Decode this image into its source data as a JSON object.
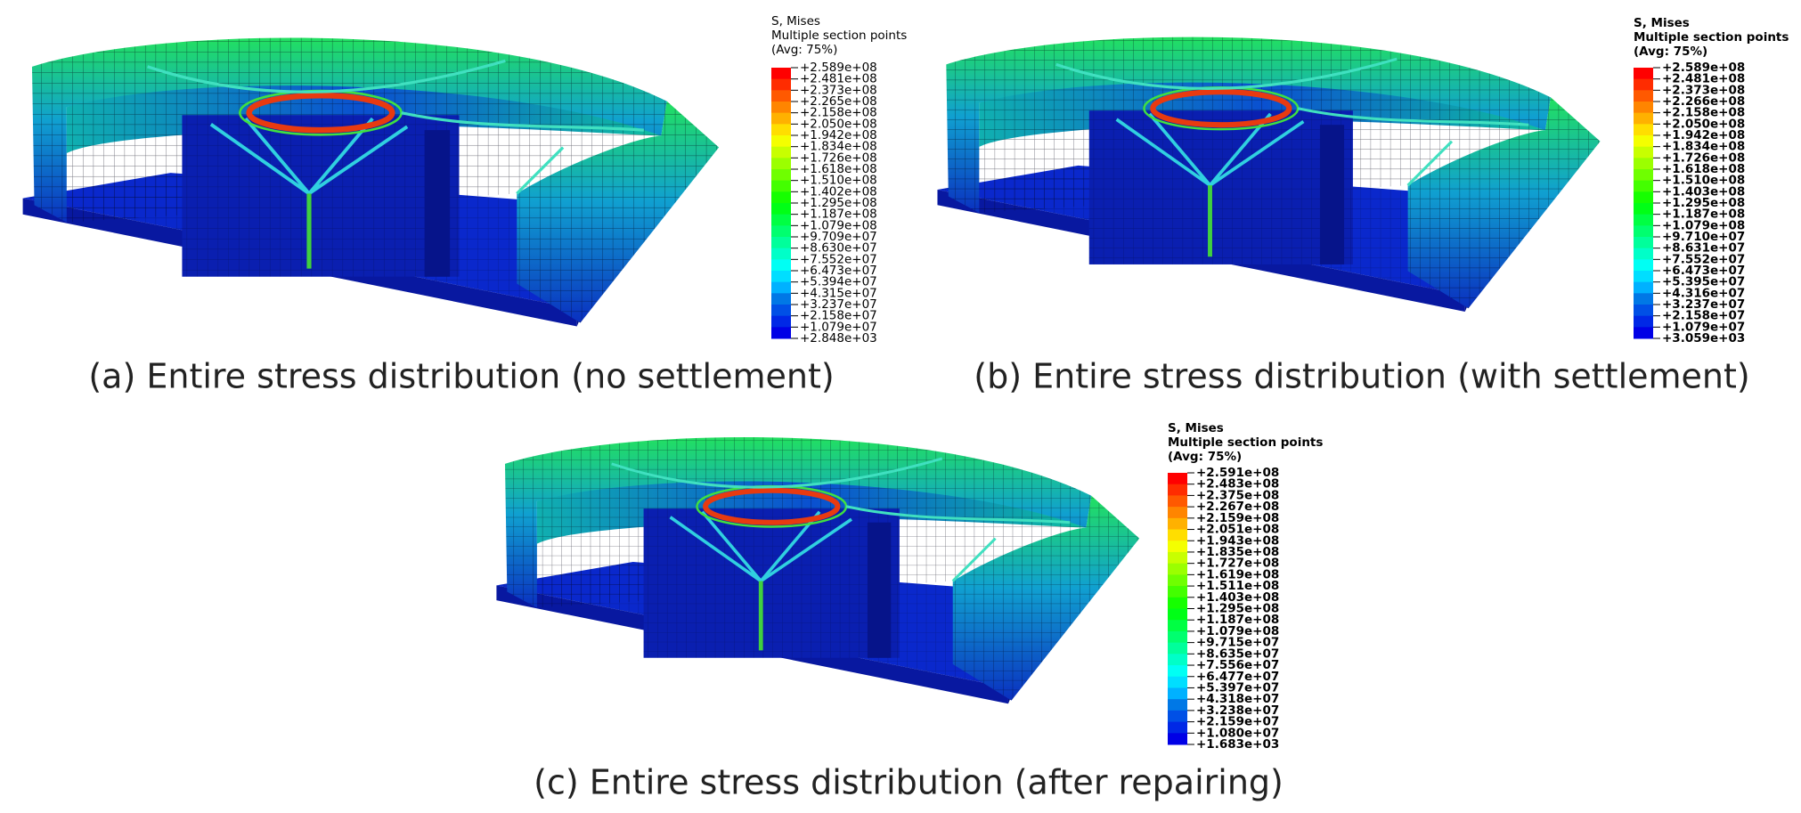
{
  "panels": [
    {
      "caption": "(a) Entire stress distribution (no settlement)",
      "legend": {
        "title": [
          "S, Mises",
          "Multiple section points",
          "(Avg: 75%)"
        ],
        "values": [
          "+2.589e+08",
          "+2.481e+08",
          "+2.373e+08",
          "+2.265e+08",
          "+2.158e+08",
          "+2.050e+08",
          "+1.942e+08",
          "+1.834e+08",
          "+1.726e+08",
          "+1.618e+08",
          "+1.510e+08",
          "+1.402e+08",
          "+1.295e+08",
          "+1.187e+08",
          "+1.079e+08",
          "+9.709e+07",
          "+8.630e+07",
          "+7.552e+07",
          "+6.473e+07",
          "+5.394e+07",
          "+4.315e+07",
          "+3.237e+07",
          "+2.158e+07",
          "+1.079e+07",
          "+2.848e+03"
        ]
      }
    },
    {
      "caption": "(b) Entire stress distribution (with settlement)",
      "legend": {
        "title": [
          "S, Mises",
          "Multiple section points",
          "(Avg: 75%)"
        ],
        "values": [
          "+2.589e+08",
          "+2.481e+08",
          "+2.373e+08",
          "+2.266e+08",
          "+2.158e+08",
          "+2.050e+08",
          "+1.942e+08",
          "+1.834e+08",
          "+1.726e+08",
          "+1.618e+08",
          "+1.510e+08",
          "+1.403e+08",
          "+1.295e+08",
          "+1.187e+08",
          "+1.079e+08",
          "+9.710e+07",
          "+8.631e+07",
          "+7.552e+07",
          "+6.473e+07",
          "+5.395e+07",
          "+4.316e+07",
          "+3.237e+07",
          "+2.158e+07",
          "+1.079e+07",
          "+3.059e+03"
        ]
      }
    },
    {
      "caption": "(c) Entire stress distribution (after repairing)",
      "legend": {
        "title": [
          "S, Mises",
          "Multiple section points",
          "(Avg: 75%)"
        ],
        "values": [
          "+2.591e+08",
          "+2.483e+08",
          "+2.375e+08",
          "+2.267e+08",
          "+2.159e+08",
          "+2.051e+08",
          "+1.943e+08",
          "+1.835e+08",
          "+1.727e+08",
          "+1.619e+08",
          "+1.511e+08",
          "+1.403e+08",
          "+1.295e+08",
          "+1.187e+08",
          "+1.079e+08",
          "+9.715e+07",
          "+8.635e+07",
          "+7.556e+07",
          "+6.477e+07",
          "+5.397e+07",
          "+4.318e+07",
          "+3.238e+07",
          "+2.159e+07",
          "+1.080e+07",
          "+1.683e+03"
        ]
      }
    }
  ]
}
